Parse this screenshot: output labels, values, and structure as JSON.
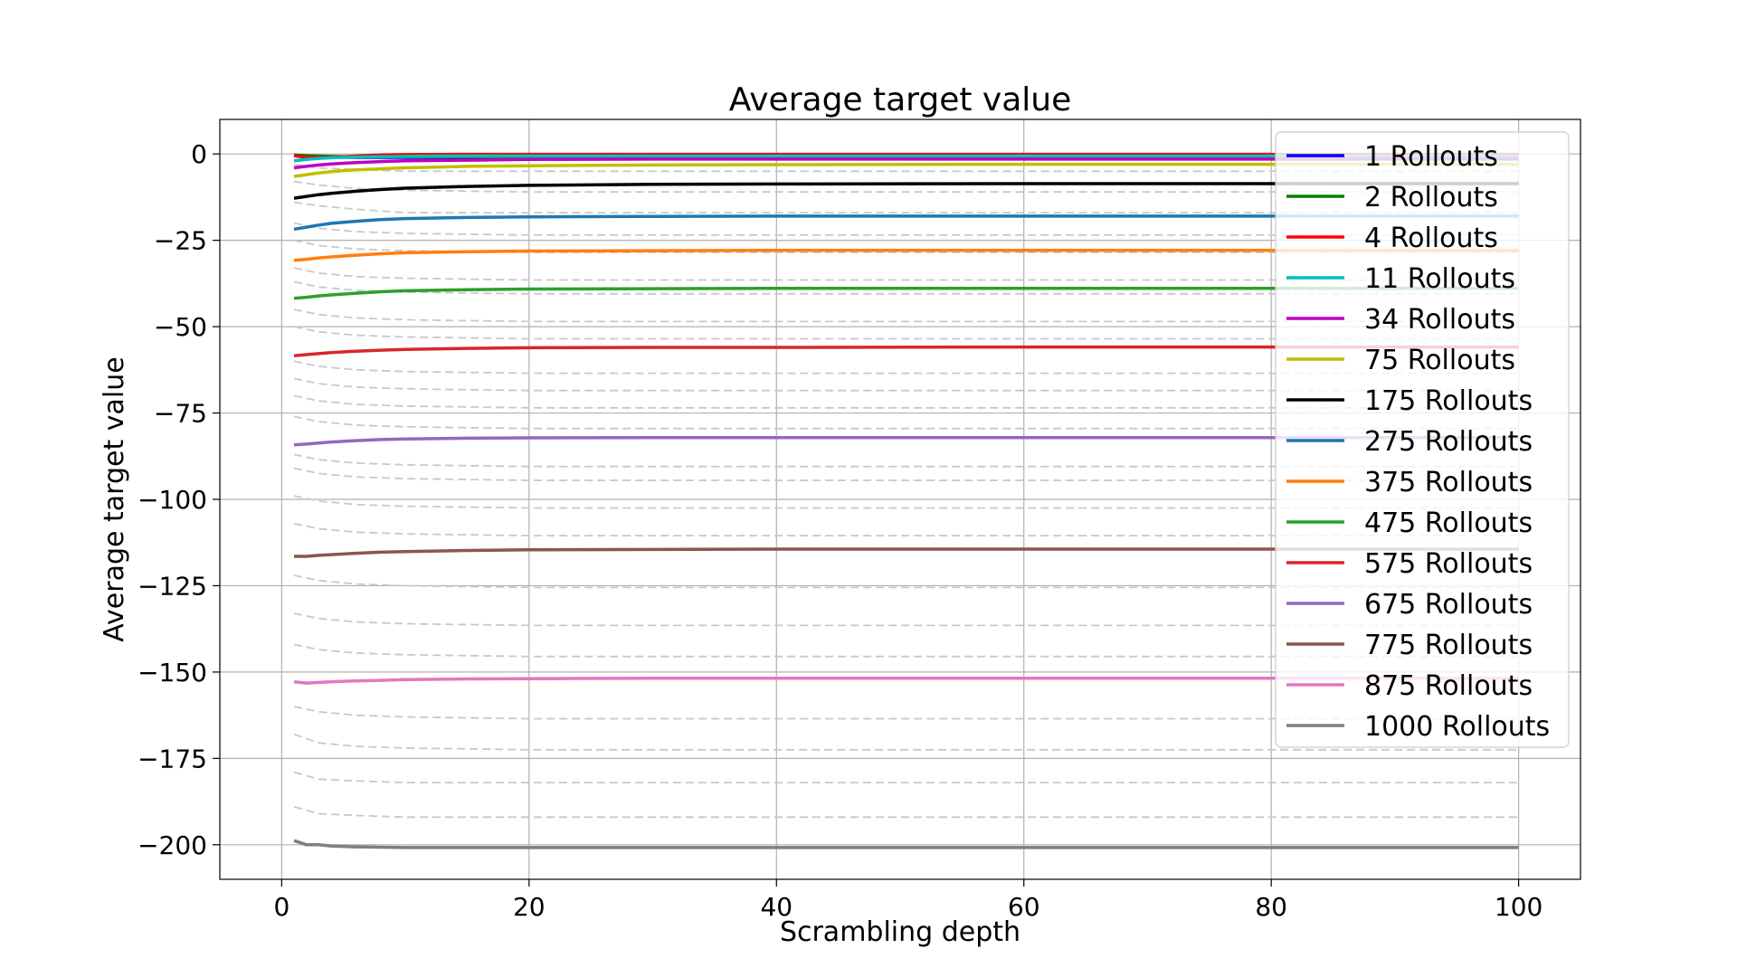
{
  "chart_data": {
    "type": "line",
    "title": "Average target value",
    "xlabel": "Scrambling depth",
    "ylabel": "Average target value",
    "xlim": [
      -5,
      105
    ],
    "ylim": [
      -210,
      10
    ],
    "xticks": [
      0,
      20,
      40,
      60,
      80,
      100
    ],
    "yticks": [
      0,
      -25,
      -50,
      -75,
      -100,
      -125,
      -150,
      -175,
      -200
    ],
    "grid": true,
    "legend_position": "top-right",
    "x": [
      1,
      2,
      3,
      4,
      6,
      8,
      10,
      15,
      20,
      30,
      40,
      60,
      80,
      100
    ],
    "series": [
      {
        "name": "1 Rollouts",
        "color": "#0000ff",
        "values": [
          -0.5,
          -0.7,
          -0.8,
          -0.9,
          -1.0,
          -1.0,
          -1.0,
          -1.0,
          -1.0,
          -1.0,
          -1.0,
          -1.0,
          -1.0,
          -1.0
        ]
      },
      {
        "name": "2 Rollouts",
        "color": "#008000",
        "values": [
          -0.3,
          -0.5,
          -0.6,
          -0.7,
          -0.8,
          -0.8,
          -0.8,
          -0.8,
          -0.8,
          -0.8,
          -0.8,
          -0.8,
          -0.8,
          -0.8
        ]
      },
      {
        "name": "4 Rollouts",
        "color": "#ff0000",
        "values": [
          -0.5,
          -1.0,
          -1.0,
          -1.0,
          -0.6,
          -0.3,
          -0.2,
          -0.1,
          -0.1,
          -0.1,
          -0.1,
          -0.1,
          -0.1,
          -0.1
        ]
      },
      {
        "name": "11 Rollouts",
        "color": "#00bfbf",
        "values": [
          -2.0,
          -1.6,
          -1.3,
          -1.1,
          -0.9,
          -0.8,
          -0.7,
          -0.6,
          -0.6,
          -0.6,
          -0.6,
          -0.6,
          -0.6,
          -0.6
        ]
      },
      {
        "name": "34 Rollouts",
        "color": "#bf00bf",
        "values": [
          -4.0,
          -3.6,
          -3.2,
          -2.9,
          -2.5,
          -2.2,
          -2.0,
          -1.8,
          -1.6,
          -1.5,
          -1.5,
          -1.5,
          -1.5,
          -1.5
        ]
      },
      {
        "name": "75 Rollouts",
        "color": "#bfbf00",
        "values": [
          -6.5,
          -6.0,
          -5.5,
          -5.1,
          -4.6,
          -4.3,
          -4.0,
          -3.6,
          -3.4,
          -3.2,
          -3.1,
          -3.0,
          -3.0,
          -3.0
        ]
      },
      {
        "name": "175 Rollouts",
        "color": "#000000",
        "values": [
          -12.8,
          -12.3,
          -11.8,
          -11.4,
          -10.8,
          -10.3,
          -9.9,
          -9.4,
          -9.1,
          -8.8,
          -8.7,
          -8.6,
          -8.6,
          -8.6
        ]
      },
      {
        "name": "275 Rollouts",
        "color": "#1f77b4",
        "values": [
          -21.8,
          -21.2,
          -20.6,
          -20.1,
          -19.5,
          -19.0,
          -18.7,
          -18.4,
          -18.2,
          -18.1,
          -18.0,
          -18.0,
          -18.0,
          -18.0
        ]
      },
      {
        "name": "375 Rollouts",
        "color": "#ff7f0e",
        "values": [
          -30.8,
          -30.5,
          -30.1,
          -29.8,
          -29.3,
          -28.9,
          -28.6,
          -28.3,
          -28.1,
          -28.0,
          -27.9,
          -27.9,
          -27.9,
          -27.9
        ]
      },
      {
        "name": "475 Rollouts",
        "color": "#2ca02c",
        "values": [
          -41.8,
          -41.5,
          -41.1,
          -40.8,
          -40.3,
          -39.9,
          -39.6,
          -39.3,
          -39.1,
          -39.0,
          -38.9,
          -38.9,
          -38.9,
          -38.9
        ]
      },
      {
        "name": "575 Rollouts",
        "color": "#d62728",
        "values": [
          -58.4,
          -58.1,
          -57.8,
          -57.5,
          -57.1,
          -56.8,
          -56.6,
          -56.3,
          -56.1,
          -56.0,
          -56.0,
          -55.9,
          -55.9,
          -55.9
        ]
      },
      {
        "name": "675 Rollouts",
        "color": "#9467bd",
        "values": [
          -84.2,
          -84.0,
          -83.7,
          -83.4,
          -83.0,
          -82.7,
          -82.5,
          -82.3,
          -82.2,
          -82.1,
          -82.1,
          -82.1,
          -82.1,
          -82.1
        ]
      },
      {
        "name": "775 Rollouts",
        "color": "#8c564b",
        "values": [
          -116.5,
          -116.5,
          -116.2,
          -116.0,
          -115.6,
          -115.3,
          -115.1,
          -114.8,
          -114.6,
          -114.5,
          -114.4,
          -114.4,
          -114.4,
          -114.4
        ]
      },
      {
        "name": "875 Rollouts",
        "color": "#e377c2",
        "values": [
          -152.8,
          -153.2,
          -153.0,
          -152.8,
          -152.6,
          -152.4,
          -152.2,
          -152.0,
          -151.9,
          -151.8,
          -151.8,
          -151.8,
          -151.8,
          -151.8
        ]
      },
      {
        "name": "1000 Rollouts",
        "color": "#7f7f7f",
        "values": [
          -198.8,
          -200.0,
          -200.0,
          -200.4,
          -200.6,
          -200.7,
          -200.8,
          -200.8,
          -200.8,
          -200.8,
          -200.8,
          -200.8,
          -200.8,
          -200.8
        ]
      }
    ],
    "gray_dashed_lines": {
      "color": "#c8c8c8",
      "x": [
        1,
        3,
        6,
        10,
        20,
        100
      ],
      "values": [
        [
          -3,
          -4,
          -4.5,
          -5,
          -5,
          -5
        ],
        [
          -8,
          -9,
          -10,
          -10.5,
          -11,
          -11
        ],
        [
          -14,
          -15,
          -16,
          -17,
          -17,
          -17
        ],
        [
          -20,
          -21.5,
          -22.5,
          -23,
          -23.5,
          -23.5
        ],
        [
          -25,
          -26.5,
          -27.5,
          -28,
          -28.5,
          -28.5
        ],
        [
          -33,
          -34.5,
          -35.5,
          -36,
          -36.5,
          -36.5
        ],
        [
          -37,
          -38.5,
          -39.5,
          -40,
          -40.5,
          -40.5
        ],
        [
          -45,
          -46.5,
          -47.5,
          -48,
          -48.5,
          -48.5
        ],
        [
          -50,
          -51.5,
          -52.5,
          -53,
          -53.5,
          -53.5
        ],
        [
          -60,
          -61.5,
          -62.5,
          -63,
          -63.5,
          -63.5
        ],
        [
          -65,
          -66.5,
          -67.5,
          -68,
          -68.5,
          -68.5
        ],
        [
          -70,
          -71.5,
          -72.5,
          -73,
          -73.5,
          -73.5
        ],
        [
          -76,
          -77.5,
          -78.5,
          -79,
          -79.5,
          -79.5
        ],
        [
          -87,
          -88.5,
          -89.5,
          -90,
          -90.5,
          -90.5
        ],
        [
          -91,
          -92.5,
          -93.5,
          -94,
          -94.5,
          -94.5
        ],
        [
          -99,
          -100.5,
          -101.5,
          -102,
          -102.5,
          -102.5
        ],
        [
          -107,
          -108.5,
          -109.5,
          -110,
          -110.5,
          -110.5
        ],
        [
          -122,
          -123.5,
          -124.5,
          -125,
          -125.5,
          -125.5
        ],
        [
          -133,
          -134.5,
          -135.5,
          -136,
          -136.5,
          -136.5
        ],
        [
          -142,
          -143.5,
          -144.5,
          -145,
          -145.5,
          -145.5
        ],
        [
          -160,
          -161.5,
          -162.5,
          -163,
          -163.5,
          -163.5
        ],
        [
          -168,
          -170.5,
          -171.5,
          -172,
          -172.5,
          -172.5
        ],
        [
          -179,
          -181,
          -181.5,
          -182,
          -182,
          -182
        ],
        [
          -189,
          -191,
          -191.5,
          -192,
          -192,
          -192
        ]
      ]
    }
  }
}
